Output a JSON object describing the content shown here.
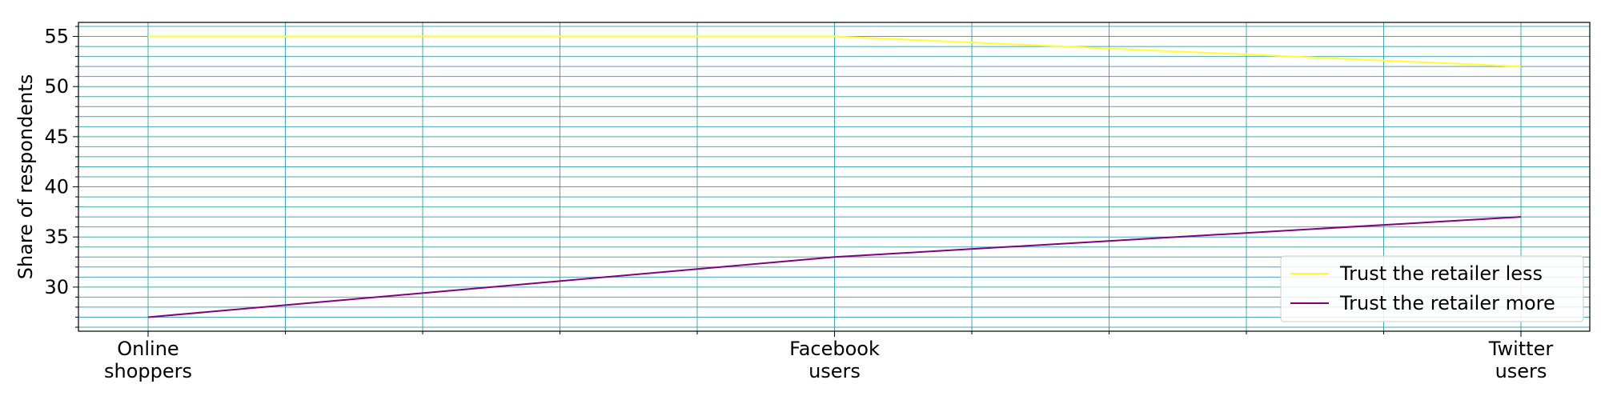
{
  "chart_data": {
    "type": "line",
    "categories": [
      "Online\nshoppers",
      "Facebook\nusers",
      "Twitter\nusers"
    ],
    "series": [
      {
        "name": "Trust the retailer less",
        "values": [
          55,
          55,
          52
        ],
        "color": "#ffff33"
      },
      {
        "name": "Trust the retailer more",
        "values": [
          27,
          33,
          37
        ],
        "color": "#800080"
      }
    ],
    "title": "",
    "xlabel": "",
    "ylabel": "Share of respondents",
    "ylim": [
      25.6,
      56.4
    ],
    "yticks": [
      30,
      35,
      40,
      45,
      50,
      55
    ],
    "y_minor_step": 1,
    "x_minor_divisions": 5,
    "grid": true,
    "grid_color": "#2a9a9f",
    "legend_position": "lower right"
  }
}
